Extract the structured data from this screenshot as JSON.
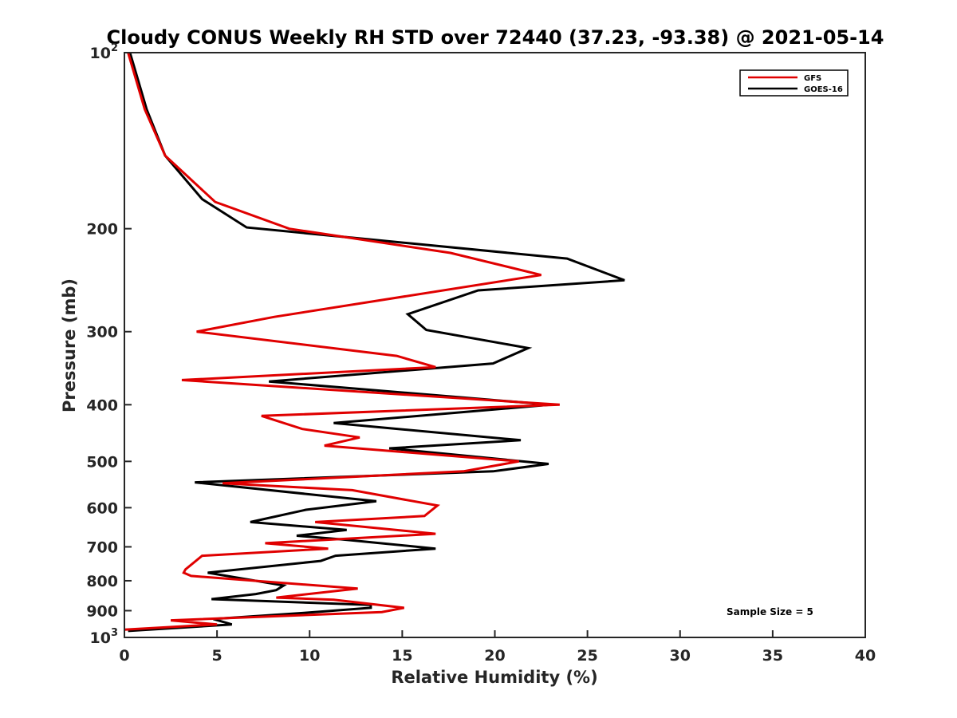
{
  "chart_data": {
    "type": "line",
    "title": "Cloudy CONUS Weekly RH STD over 72440 (37.23, -93.38) @ 2021-05-14",
    "xlabel": "Relative Humidity (%)",
    "ylabel": "Pressure (mb)",
    "xlim": [
      0,
      40
    ],
    "ylim": [
      100,
      1000
    ],
    "y_scale": "log",
    "y_reversed": true,
    "x_ticks": [
      "0",
      "5",
      "10",
      "15",
      "20",
      "25",
      "30",
      "35",
      "40"
    ],
    "y_ticks": [
      {
        "value": 100,
        "base": "10",
        "exp": "2"
      },
      {
        "value": 200,
        "base": "200",
        "exp": ""
      },
      {
        "value": 300,
        "base": "300",
        "exp": ""
      },
      {
        "value": 400,
        "base": "400",
        "exp": ""
      },
      {
        "value": 500,
        "base": "500",
        "exp": ""
      },
      {
        "value": 600,
        "base": "600",
        "exp": ""
      },
      {
        "value": 700,
        "base": "700",
        "exp": ""
      },
      {
        "value": 800,
        "base": "800",
        "exp": ""
      },
      {
        "value": 900,
        "base": "900",
        "exp": ""
      },
      {
        "value": 1000,
        "base": "10",
        "exp": "3"
      }
    ],
    "grid": false,
    "legend_position": "top-right",
    "annotation": "Sample Size = 5",
    "series": [
      {
        "name": "GFS",
        "color": "#e00000",
        "points": [
          [
            0.2,
            100
          ],
          [
            1.1,
            125
          ],
          [
            2.2,
            150
          ],
          [
            4.9,
            180
          ],
          [
            8.9,
            200
          ],
          [
            17.6,
            220
          ],
          [
            22.5,
            240
          ],
          [
            8.1,
            283
          ],
          [
            3.9,
            300
          ],
          [
            14.7,
            330
          ],
          [
            16.8,
            345
          ],
          [
            3.1,
            363
          ],
          [
            23.5,
            400
          ],
          [
            7.4,
            418
          ],
          [
            9.6,
            440
          ],
          [
            12.7,
            455
          ],
          [
            10.8,
            470
          ],
          [
            21.3,
            500
          ],
          [
            18.3,
            520
          ],
          [
            5.3,
            545
          ],
          [
            12.3,
            560
          ],
          [
            16.9,
            595
          ],
          [
            16.2,
            620
          ],
          [
            10.3,
            635
          ],
          [
            16.8,
            665
          ],
          [
            7.6,
            690
          ],
          [
            11.0,
            705
          ],
          [
            4.2,
            725
          ],
          [
            3.3,
            765
          ],
          [
            3.2,
            775
          ],
          [
            3.6,
            785
          ],
          [
            12.6,
            825
          ],
          [
            8.2,
            855
          ],
          [
            11.3,
            862
          ],
          [
            15.1,
            890
          ],
          [
            13.9,
            905
          ],
          [
            2.5,
            935
          ],
          [
            5.0,
            950
          ],
          [
            0.0,
            970
          ]
        ]
      },
      {
        "name": "GOES-16",
        "color": "#000000",
        "points": [
          [
            0.3,
            100
          ],
          [
            1.2,
            125
          ],
          [
            2.2,
            150
          ],
          [
            4.2,
            178
          ],
          [
            6.6,
            199
          ],
          [
            23.9,
            225
          ],
          [
            27.0,
            245
          ],
          [
            19.1,
            255
          ],
          [
            15.3,
            280
          ],
          [
            16.3,
            298
          ],
          [
            21.8,
            320
          ],
          [
            19.9,
            340
          ],
          [
            7.8,
            365
          ],
          [
            23.0,
            400
          ],
          [
            11.3,
            430
          ],
          [
            21.4,
            460
          ],
          [
            14.3,
            475
          ],
          [
            22.9,
            505
          ],
          [
            19.9,
            520
          ],
          [
            3.8,
            543
          ],
          [
            13.6,
            585
          ],
          [
            9.8,
            605
          ],
          [
            6.8,
            635
          ],
          [
            12.0,
            655
          ],
          [
            9.3,
            670
          ],
          [
            11.8,
            680
          ],
          [
            16.8,
            705
          ],
          [
            11.4,
            725
          ],
          [
            10.6,
            740
          ],
          [
            4.5,
            775
          ],
          [
            8.6,
            815
          ],
          [
            8.2,
            830
          ],
          [
            7.1,
            843
          ],
          [
            4.7,
            860
          ],
          [
            13.3,
            880
          ],
          [
            13.3,
            890
          ],
          [
            9.7,
            908
          ],
          [
            4.8,
            930
          ],
          [
            5.8,
            950
          ],
          [
            0.2,
            975
          ]
        ]
      }
    ]
  }
}
